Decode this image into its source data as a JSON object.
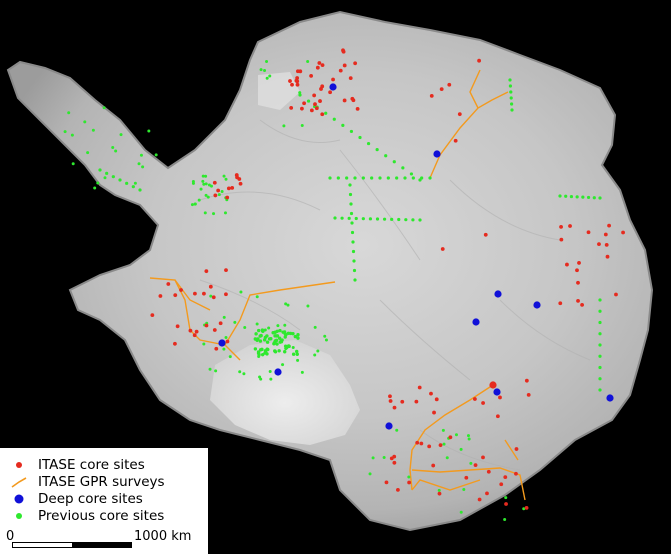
{
  "legend": {
    "items": [
      {
        "label": "ITASE core sites",
        "symbol": "red-dot",
        "color": "#e52b1f"
      },
      {
        "label": "ITASE GPR surveys",
        "symbol": "orange-line",
        "color": "#f39a1e"
      },
      {
        "label": "Deep core sites",
        "symbol": "blue-dot",
        "color": "#1010d8"
      },
      {
        "label": "Previous core sites",
        "symbol": "green-dot",
        "color": "#2ee82e"
      }
    ]
  },
  "scale_bar": {
    "start_label": "0",
    "end_label": "1000 km"
  },
  "colors": {
    "background": "#000000",
    "ice_sheet": "#cfcfcf",
    "itase_core": "#e52b1f",
    "gpr_survey": "#f39a1e",
    "deep_core": "#1010d8",
    "previous_core": "#2ee82e"
  }
}
